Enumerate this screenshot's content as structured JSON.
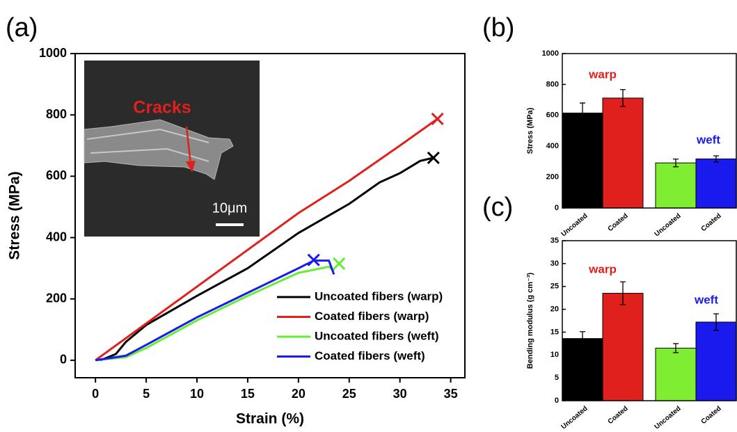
{
  "chart_data": [
    {
      "type": "line",
      "panel_label": "(a)",
      "xlabel": "Strain (%)",
      "ylabel": "Stress  (MPa)",
      "xlim": [
        -2,
        36.4
      ],
      "ylim": [
        -57,
        1000
      ],
      "xticks": [
        0,
        5,
        10,
        15,
        20,
        25,
        30,
        35
      ],
      "yticks": [
        0,
        200,
        400,
        600,
        800,
        1000
      ],
      "legend": "lower right",
      "inset": {
        "label": "Cracks",
        "scale_bar": "10μm"
      },
      "series": [
        {
          "name": "Uncoated fibers (warp)",
          "color": "#000000",
          "x": [
            0.5,
            2,
            3,
            5,
            10,
            15,
            20,
            25,
            28,
            30,
            32,
            33.3
          ],
          "values": [
            0,
            20,
            60,
            115,
            210,
            300,
            415,
            510,
            580,
            610,
            650,
            660
          ],
          "fracture": [
            33.3,
            660
          ]
        },
        {
          "name": "Coated fibers (warp)",
          "color": "#e0201c",
          "x": [
            0,
            5,
            10,
            15,
            20,
            25,
            30,
            33.7
          ],
          "values": [
            0,
            120,
            240,
            360,
            480,
            585,
            700,
            787
          ],
          "fracture": [
            33.7,
            787
          ]
        },
        {
          "name": "Uncoated fibers (weft)",
          "color": "#66ee33",
          "x": [
            0,
            3,
            5,
            10,
            15,
            20,
            23,
            23.5
          ],
          "values": [
            0,
            10,
            40,
            130,
            210,
            285,
            305,
            290
          ],
          "fracture": [
            24,
            315
          ]
        },
        {
          "name": "Coated fibers (weft)",
          "color": "#1a1aee",
          "x": [
            0,
            3,
            5,
            10,
            15,
            20,
            21.5,
            23,
            23.5
          ],
          "values": [
            0,
            15,
            50,
            140,
            220,
            300,
            325,
            325,
            280
          ],
          "fracture": [
            21.5,
            327
          ]
        }
      ]
    },
    {
      "type": "bar",
      "panel_label": "(b)",
      "ylabel": "Stress  (MPa)",
      "ylim": [
        0,
        1000
      ],
      "yticks": [
        0,
        200,
        400,
        600,
        800,
        1000
      ],
      "categories": [
        "Uncoated",
        "Coated",
        "Uncoated",
        "Coated"
      ],
      "values": [
        615,
        712,
        292,
        318
      ],
      "errors": [
        65,
        55,
        25,
        20
      ],
      "colors": [
        "#000000",
        "#e0201c",
        "#7fee33",
        "#1a1aee"
      ],
      "groups": [
        {
          "label": "warp",
          "color": "#e0201c"
        },
        {
          "label": "weft",
          "color": "#1a1aee"
        }
      ]
    },
    {
      "type": "bar",
      "panel_label": "(c)",
      "ylabel": "Bending modulus (g cm⁻³)",
      "ylim": [
        0,
        35
      ],
      "yticks": [
        0,
        5,
        10,
        15,
        20,
        25,
        30,
        35
      ],
      "categories": [
        "Uncoated",
        "Coated",
        "Uncoated",
        "Coated"
      ],
      "values": [
        13.6,
        23.5,
        11.5,
        17.2
      ],
      "errors": [
        1.5,
        2.5,
        1.0,
        1.8
      ],
      "colors": [
        "#000000",
        "#e0201c",
        "#7fee33",
        "#1a1aee"
      ],
      "groups": [
        {
          "label": "warp",
          "color": "#e0201c"
        },
        {
          "label": "weft",
          "color": "#1a1aee"
        }
      ]
    }
  ]
}
